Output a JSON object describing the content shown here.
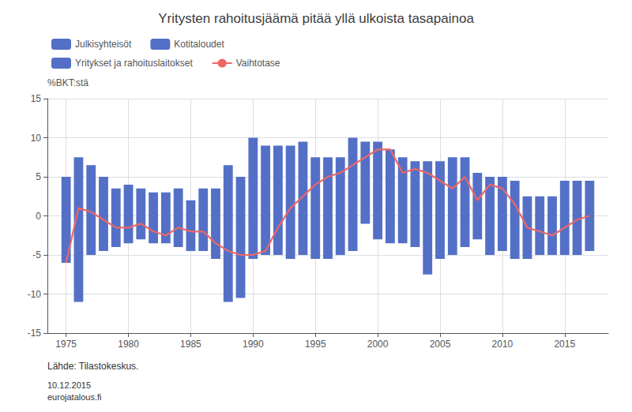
{
  "chart_data": {
    "type": "bar",
    "title": "Yritysten rahoitusjäämä pitää yllä ulkoista tasapainoa",
    "ylabel": "%BKT:stä",
    "annotations": [
      "Lähde: Tilastokeskus.",
      "10.12.2015\neurojatalous.fi"
    ],
    "x": [
      1975,
      1976,
      1977,
      1978,
      1979,
      1980,
      1981,
      1982,
      1983,
      1984,
      1985,
      1986,
      1987,
      1988,
      1989,
      1990,
      1991,
      1992,
      1993,
      1994,
      1995,
      1996,
      1997,
      1998,
      1999,
      2000,
      2001,
      2002,
      2003,
      2004,
      2005,
      2006,
      2007,
      2008,
      2009,
      2010,
      2011,
      2012,
      2013,
      2014,
      2015,
      2016,
      2017
    ],
    "series": [
      {
        "name": "Julkisyhteisöt",
        "type": "bar",
        "color": "#5470c6"
      },
      {
        "name": "Kotitaloudet",
        "type": "bar",
        "color": "#5470c6"
      },
      {
        "name": "Yritykset ja rahoituslaitokset",
        "type": "bar",
        "color": "#5470c6"
      },
      {
        "type": "bar",
        "color": "#5470c6",
        "values": [
          5.0,
          7.5,
          6.5,
          5.0,
          3.5,
          4.0,
          3.5,
          3.0,
          3.0,
          3.5,
          2.0,
          3.5,
          3.5,
          6.5,
          5.0,
          10.0,
          9.0,
          9.0,
          9.0,
          9.5,
          7.5,
          7.5,
          7.5,
          10.0,
          9.5,
          9.5,
          8.5,
          7.5,
          7.0,
          7.0,
          7.0,
          7.5,
          7.5,
          5.5,
          5.0,
          5.0,
          4.5,
          2.5,
          2.5,
          2.5,
          4.5,
          4.5,
          4.5
        ],
        "bottoms": [
          -6.0,
          -11.0,
          -5.0,
          -4.5,
          -4.0,
          -3.5,
          -3.0,
          -3.5,
          -3.5,
          -4.0,
          -4.5,
          -4.5,
          -5.5,
          -11.0,
          -10.5,
          -5.5,
          -5.0,
          -5.0,
          -5.5,
          -5.0,
          -5.5,
          -5.5,
          -5.0,
          -4.5,
          -1.0,
          -3.0,
          -3.5,
          -3.5,
          -4.0,
          -7.5,
          -5.5,
          -5.0,
          -4.0,
          -3.0,
          -5.0,
          -4.5,
          -5.5,
          -5.5,
          -5.0,
          -5.0,
          -5.0,
          -5.0,
          -4.5
        ]
      },
      {
        "name": "Vaihtotase",
        "type": "line",
        "color": "#ee6666",
        "values": [
          -6.0,
          1.0,
          0.5,
          -0.5,
          -1.5,
          -1.5,
          -1.0,
          -2.0,
          -2.5,
          -1.5,
          -2.0,
          -2.0,
          -3.5,
          -4.5,
          -5.0,
          -5.0,
          -4.5,
          -1.5,
          1.0,
          2.5,
          4.0,
          5.0,
          5.5,
          6.5,
          7.5,
          8.5,
          8.5,
          5.5,
          6.0,
          5.5,
          4.5,
          3.5,
          5.0,
          2.0,
          4.0,
          3.5,
          1.5,
          -1.5,
          -2.0,
          -2.5,
          -1.5,
          -0.5,
          0.0
        ]
      }
    ],
    "xlim": [
      1973.5,
      2018.5
    ],
    "xticks": [
      1975,
      1980,
      1985,
      1990,
      1995,
      2000,
      2005,
      2010,
      2015
    ],
    "ylim": [
      -15,
      15
    ],
    "yticks": [
      -15,
      -10,
      -5,
      0,
      5,
      10,
      15
    ],
    "grid": true,
    "legend": "upper left"
  }
}
